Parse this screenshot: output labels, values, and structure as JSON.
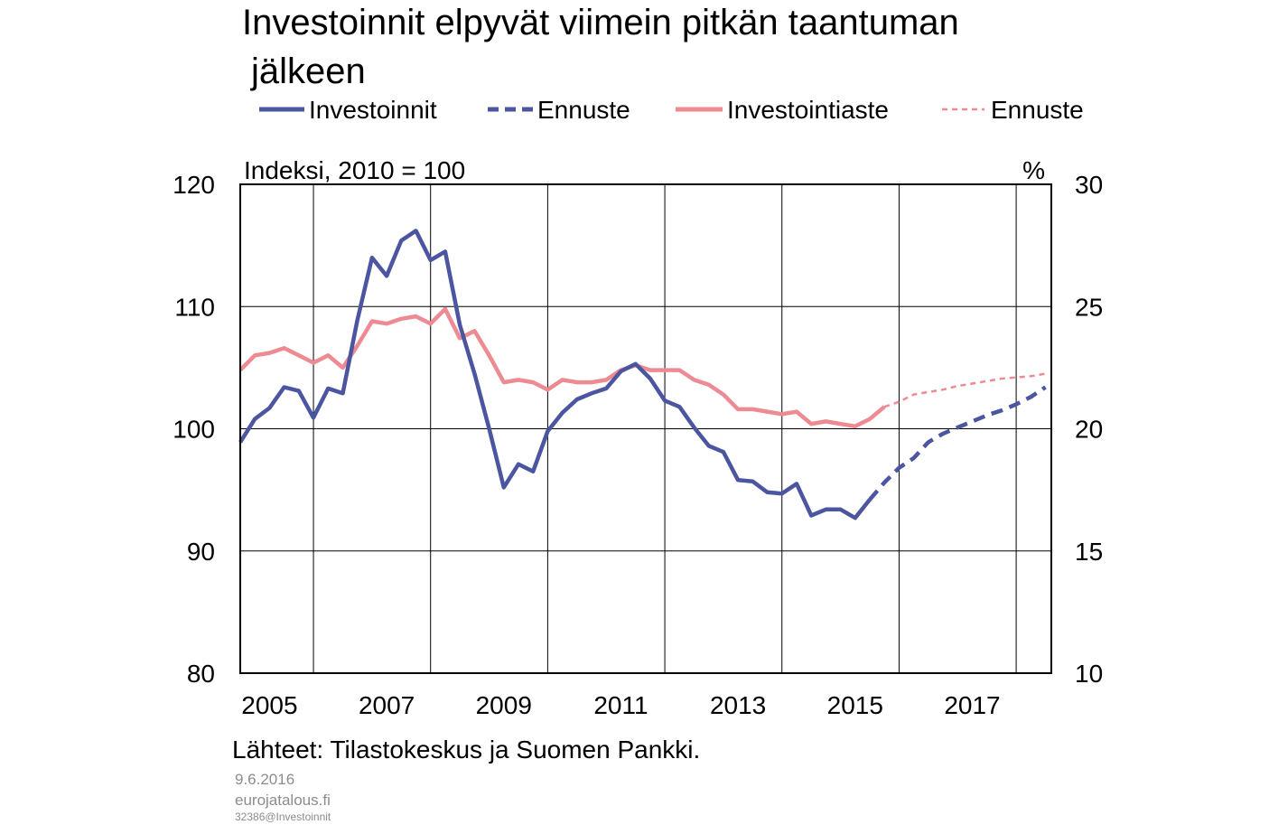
{
  "chart_data": {
    "type": "line",
    "title": "Investoinnit elpyvät viimein pitkän taantuman",
    "title_line2": "jälkeen",
    "left_axis_label": "Indeksi, 2010 = 100",
    "right_axis_label": "%",
    "ylim_left": [
      80,
      120
    ],
    "ylim_right": [
      10,
      30
    ],
    "yticks_left": [
      "120",
      "110",
      "100",
      "90",
      "80"
    ],
    "yticks_right": [
      "30",
      "25",
      "20",
      "15",
      "10"
    ],
    "xlim": [
      2004.75,
      2018.6
    ],
    "xticks": [
      "2005",
      "2007",
      "2009",
      "2011",
      "2013",
      "2015",
      "2017"
    ],
    "grid": true,
    "legend_position": "top",
    "source": "Lähteet: Tilastokeskus ja Suomen Pankki.",
    "footer_date": "9.6.2016",
    "footer_site": "eurojatalous.fi",
    "footer_code": "32386@Investoinnit",
    "colors": {
      "investoinnit": "#4B55A0",
      "investointiaste": "#EE8A92"
    },
    "series": [
      {
        "name": "Investoinnit",
        "axis": "left",
        "style": "solid",
        "color": "#4B55A0",
        "x": [
          2004.75,
          2005.0,
          2005.25,
          2005.5,
          2005.75,
          2006.0,
          2006.25,
          2006.5,
          2006.75,
          2007.0,
          2007.25,
          2007.5,
          2007.75,
          2008.0,
          2008.25,
          2008.5,
          2008.75,
          2009.0,
          2009.25,
          2009.5,
          2009.75,
          2010.0,
          2010.25,
          2010.5,
          2010.75,
          2011.0,
          2011.25,
          2011.5,
          2011.75,
          2012.0,
          2012.25,
          2012.5,
          2012.75,
          2013.0,
          2013.25,
          2013.5,
          2013.75,
          2014.0,
          2014.25,
          2014.5,
          2014.75,
          2015.0,
          2015.25,
          2015.5
        ],
        "values": [
          98.9,
          100.8,
          101.7,
          103.4,
          103.1,
          100.9,
          103.3,
          102.9,
          108.9,
          114.0,
          112.5,
          115.4,
          116.2,
          113.8,
          114.5,
          108.5,
          104.5,
          100.0,
          95.2,
          97.1,
          96.5,
          99.8,
          101.3,
          102.4,
          102.9,
          103.3,
          104.7,
          105.3,
          104.1,
          102.3,
          101.8,
          100.1,
          98.6,
          98.1,
          95.8,
          95.7,
          94.8,
          94.7,
          95.5,
          92.9,
          93.4,
          93.4,
          92.7,
          94.2
        ]
      },
      {
        "name": "Ennuste",
        "axis": "left",
        "style": "dashed",
        "color": "#4B55A0",
        "x": [
          2015.5,
          2015.75,
          2016.0,
          2016.25,
          2016.5,
          2016.75,
          2017.0,
          2017.25,
          2017.5,
          2017.75,
          2018.0,
          2018.25,
          2018.5
        ],
        "values": [
          94.2,
          95.6,
          96.8,
          97.6,
          98.9,
          99.6,
          100.1,
          100.6,
          101.1,
          101.5,
          102.0,
          102.6,
          103.4
        ]
      },
      {
        "name": "Investointiaste",
        "axis": "right",
        "style": "solid",
        "color": "#EE8A92",
        "x": [
          2004.75,
          2005.0,
          2005.25,
          2005.5,
          2005.75,
          2006.0,
          2006.25,
          2006.5,
          2006.75,
          2007.0,
          2007.25,
          2007.5,
          2007.75,
          2008.0,
          2008.25,
          2008.5,
          2008.75,
          2009.0,
          2009.25,
          2009.5,
          2009.75,
          2010.0,
          2010.25,
          2010.5,
          2010.75,
          2011.0,
          2011.25,
          2011.5,
          2011.75,
          2012.0,
          2012.25,
          2012.5,
          2012.75,
          2013.0,
          2013.25,
          2013.5,
          2013.75,
          2014.0,
          2014.25,
          2014.5,
          2014.75,
          2015.0,
          2015.25,
          2015.5,
          2015.75
        ],
        "values": [
          22.4,
          23.0,
          23.1,
          23.3,
          23.0,
          22.7,
          23.0,
          22.5,
          23.4,
          24.4,
          24.3,
          24.5,
          24.6,
          24.3,
          24.9,
          23.7,
          24.0,
          23.0,
          21.9,
          22.0,
          21.9,
          21.6,
          22.0,
          21.9,
          21.9,
          22.0,
          22.4,
          22.6,
          22.4,
          22.4,
          22.4,
          22.0,
          21.8,
          21.4,
          20.8,
          20.8,
          20.7,
          20.6,
          20.7,
          20.2,
          20.3,
          20.2,
          20.1,
          20.4,
          20.9
        ]
      },
      {
        "name": "Ennuste",
        "axis": "right",
        "style": "dashed-thin",
        "color": "#EE8A92",
        "x": [
          2015.75,
          2016.0,
          2016.25,
          2016.5,
          2016.75,
          2017.0,
          2017.25,
          2017.5,
          2017.75,
          2018.0,
          2018.25,
          2018.5
        ],
        "values": [
          20.9,
          21.1,
          21.4,
          21.5,
          21.6,
          21.75,
          21.85,
          21.95,
          22.05,
          22.1,
          22.15,
          22.25
        ]
      }
    ]
  }
}
